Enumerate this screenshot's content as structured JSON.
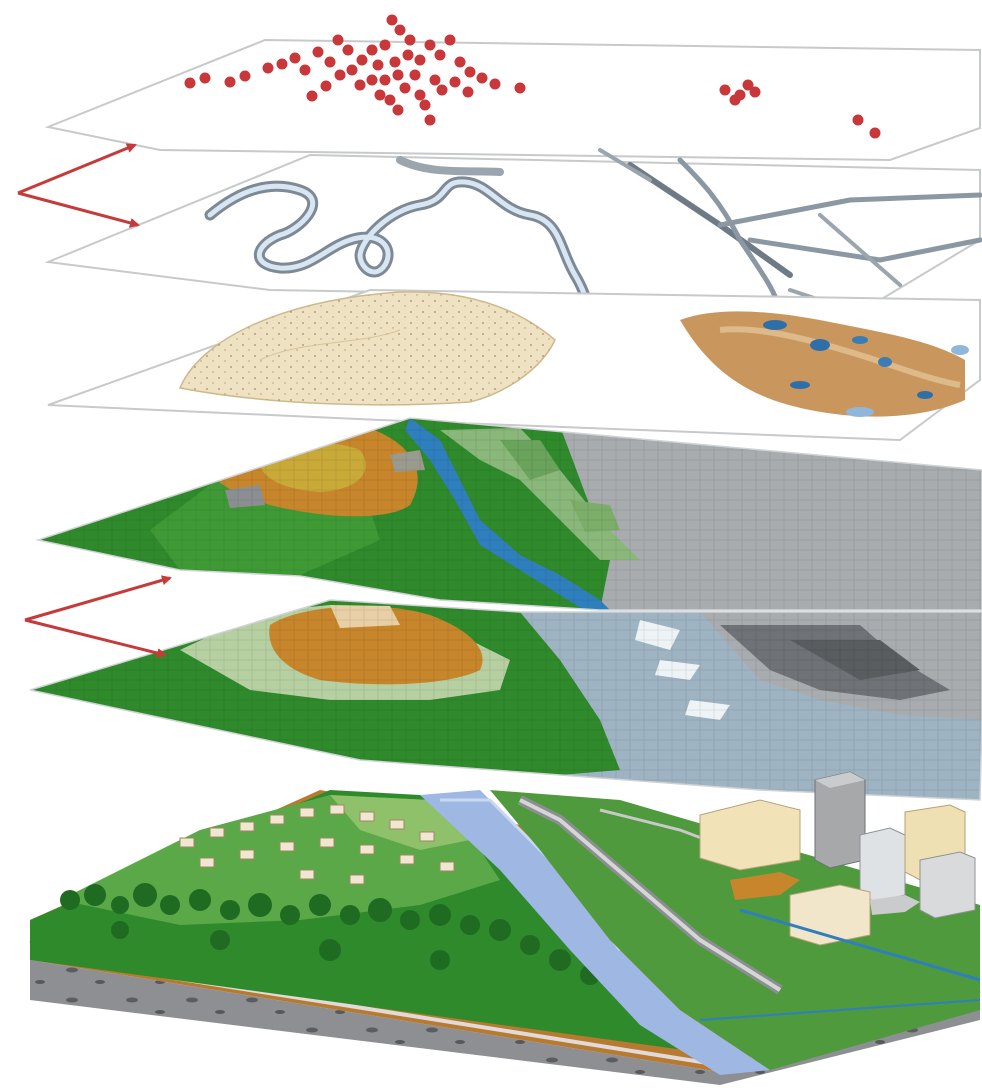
{
  "diagram": {
    "kind": "stacked-gis-layers",
    "layers": [
      {
        "id": "points",
        "icon": "point-dots-icon"
      },
      {
        "id": "lines",
        "icon": "network-lines-icon"
      },
      {
        "id": "polygons",
        "icon": "polygon-areas-icon"
      },
      {
        "id": "elevation-raster",
        "icon": "raster-grid-icon"
      },
      {
        "id": "landcover-raster",
        "icon": "raster-grid-icon"
      },
      {
        "id": "real-world",
        "icon": "landscape-block-icon"
      }
    ],
    "arrows": [
      {
        "id": "vector-arrows",
        "icon": "double-arrow-icon"
      },
      {
        "id": "raster-arrows",
        "icon": "double-arrow-icon"
      }
    ]
  },
  "colors": {
    "arrow": "#c63a3a",
    "points": "#c8383a",
    "lines": "#8a96a0",
    "polygon_sand": "#efe2c2",
    "polygon_brown": "#c9975e",
    "forest": "#2f8a2c",
    "forest_light": "#5aa848",
    "ochre": "#c8862c",
    "water": "#2f7fbf",
    "grey": "#a9acaf",
    "grey_dark": "#6f7276",
    "soil": "#b77a2f",
    "rock": "#8d8f92",
    "river": "#9fb7e3"
  }
}
